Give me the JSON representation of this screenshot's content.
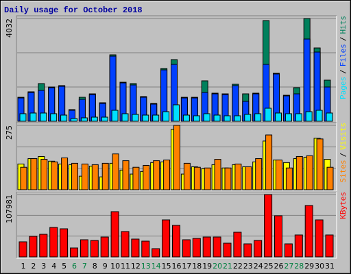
{
  "chart_data": [
    {
      "type": "bar",
      "title": "Daily usage for October 2018",
      "categories": [
        1,
        2,
        3,
        4,
        5,
        6,
        7,
        8,
        9,
        10,
        11,
        12,
        13,
        14,
        15,
        16,
        17,
        18,
        19,
        20,
        21,
        22,
        23,
        24,
        25,
        26,
        27,
        28,
        29,
        30,
        31
      ],
      "highlight_categories": [
        6,
        7,
        13,
        14,
        20,
        21,
        27,
        28
      ],
      "highlight_color": "#008040",
      "legend_separator": "/",
      "series": [
        {
          "name": "Pages",
          "color": "#00e0ff",
          "values": [
            296,
            323,
            323,
            296,
            242,
            108,
            134,
            161,
            161,
            430,
            296,
            269,
            242,
            242,
            376,
            645,
            242,
            215,
            296,
            242,
            215,
            215,
            269,
            296,
            511,
            323,
            296,
            296,
            376,
            430,
            323
          ]
        },
        {
          "name": "Files",
          "color": "#0040ff",
          "values": [
            914,
            1129,
            1210,
            1317,
            1371,
            430,
            860,
            1048,
            699,
            2554,
            1505,
            1425,
            941,
            672,
            2016,
            2231,
            914,
            914,
            1129,
            1075,
            1048,
            1398,
            780,
            1075,
            2231,
            1855,
            995,
            1075,
            3226,
            2715,
            1344
          ]
        },
        {
          "name": "Hits",
          "color": "#00805c",
          "values": [
            941,
            1156,
            1478,
            1344,
            1398,
            457,
            941,
            1075,
            726,
            2607,
            1532,
            1478,
            968,
            699,
            2070,
            2419,
            941,
            941,
            1586,
            1102,
            1075,
            1452,
            1075,
            1102,
            3951,
            1882,
            1021,
            1317,
            4032,
            2876,
            1613
          ]
        }
      ],
      "ylim": [
        0,
        4032
      ],
      "yticks": [
        4032
      ],
      "grid": true
    },
    {
      "type": "bar",
      "legend_separator": "/",
      "series": [
        {
          "name": "Sites",
          "color": "#ff8000",
          "values": [
            96,
            133,
            130,
            119,
            136,
            113,
            110,
            107,
            113,
            153,
            124,
            96,
            104,
            124,
            127,
            275,
            113,
            96,
            93,
            130,
            93,
            110,
            98,
            133,
            234,
            127,
            93,
            142,
            145,
            217,
            96
          ]
        },
        {
          "name": "Visits",
          "color": "#ffff00",
          "values": [
            110,
            133,
            142,
            122,
            110,
            107,
            58,
            101,
            55,
            113,
            84,
            67,
            78,
            116,
            119,
            258,
            67,
            98,
            90,
            107,
            93,
            107,
            98,
            119,
            208,
            127,
            116,
            133,
            139,
            220,
            130
          ]
        }
      ],
      "ylim": [
        0,
        275
      ],
      "yticks": [
        275
      ],
      "grid": true
    },
    {
      "type": "bar",
      "series": [
        {
          "name": "KBytes",
          "color": "#ff0000",
          "values": [
            26105,
            35598,
            39158,
            51024,
            48651,
            15426,
            29665,
            28478,
            34411,
            78316,
            43904,
            30852,
            27292,
            14239,
            64076,
            54584,
            29665,
            32038,
            34411,
            34411,
            23732,
            42718,
            22545,
            28478,
            107981,
            71196,
            22545,
            37971,
            88995,
            64076,
            37971
          ]
        }
      ],
      "ylim": [
        0,
        107981
      ],
      "yticks": [
        107981
      ],
      "grid": true
    }
  ]
}
